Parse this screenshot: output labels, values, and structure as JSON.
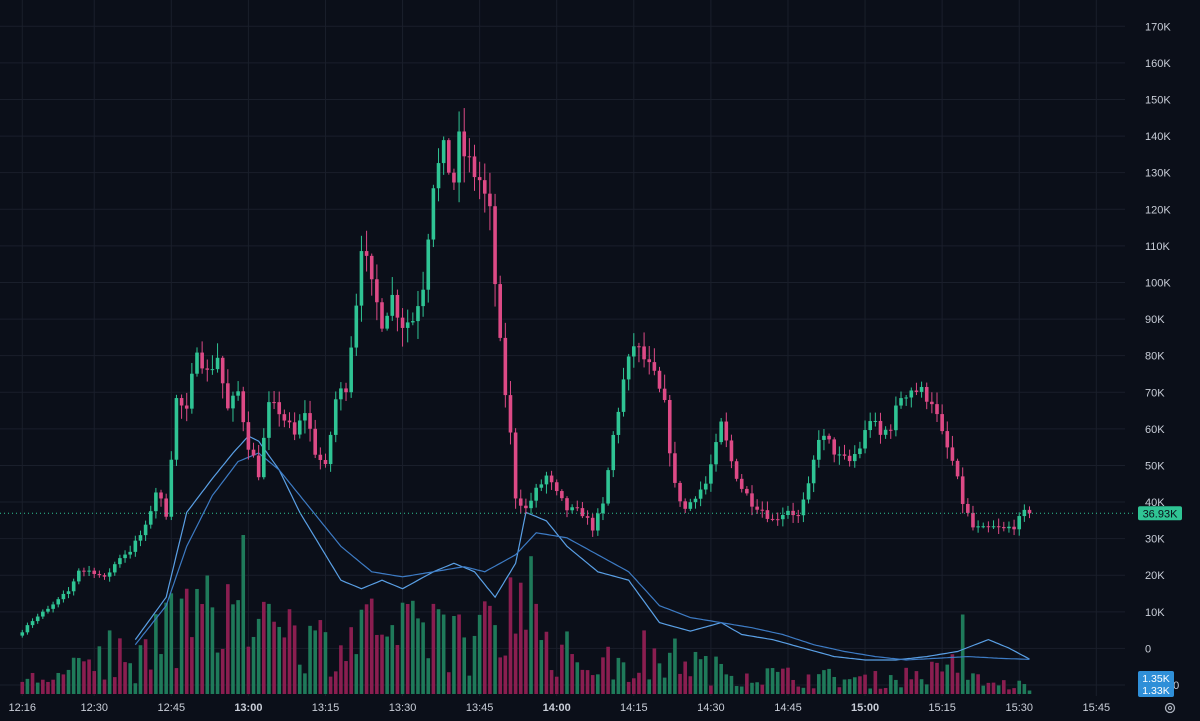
{
  "chart_data": {
    "type": "candlestick",
    "theme": {
      "background": "#0b0f19",
      "grid": "#1a1f2b",
      "text": "#c9ced8",
      "up": "#2fc494",
      "down": "#dd4a86",
      "up_volume": "#1f7a5a",
      "down_volume": "#8a1e50",
      "ma_fast": "#5aa0e6",
      "ma_slow": "#3d7bc4",
      "last_price_line": "#2fc494"
    },
    "x_axis": {
      "ticks": [
        {
          "label": "12:16",
          "t": 16,
          "bold": false
        },
        {
          "label": "12:30",
          "t": 30,
          "bold": false
        },
        {
          "label": "12:45",
          "t": 45,
          "bold": false
        },
        {
          "label": "13:00",
          "t": 60,
          "bold": true
        },
        {
          "label": "13:15",
          "t": 75,
          "bold": false
        },
        {
          "label": "13:30",
          "t": 90,
          "bold": false
        },
        {
          "label": "13:45",
          "t": 105,
          "bold": false
        },
        {
          "label": "14:00",
          "t": 120,
          "bold": true
        },
        {
          "label": "14:15",
          "t": 135,
          "bold": false
        },
        {
          "label": "14:30",
          "t": 150,
          "bold": false
        },
        {
          "label": "14:45",
          "t": 165,
          "bold": false
        },
        {
          "label": "15:00",
          "t": 180,
          "bold": true
        },
        {
          "label": "15:15",
          "t": 195,
          "bold": false
        },
        {
          "label": "15:30",
          "t": 210,
          "bold": false
        },
        {
          "label": "15:45",
          "t": 225,
          "bold": false
        }
      ],
      "range_minutes_after_12_00": [
        14,
        230
      ]
    },
    "y_axis": {
      "ticks": [
        {
          "label": "170K",
          "v": 170000
        },
        {
          "label": "160K",
          "v": 160000
        },
        {
          "label": "150K",
          "v": 150000
        },
        {
          "label": "140K",
          "v": 140000
        },
        {
          "label": "130K",
          "v": 130000
        },
        {
          "label": "120K",
          "v": 120000
        },
        {
          "label": "110K",
          "v": 110000
        },
        {
          "label": "100K",
          "v": 100000
        },
        {
          "label": "90K",
          "v": 90000
        },
        {
          "label": "80K",
          "v": 80000
        },
        {
          "label": "70K",
          "v": 70000
        },
        {
          "label": "60K",
          "v": 60000
        },
        {
          "label": "50K",
          "v": 50000
        },
        {
          "label": "40K",
          "v": 40000
        },
        {
          "label": "30K",
          "v": 30000
        },
        {
          "label": "20K",
          "v": 20000
        },
        {
          "label": "10K",
          "v": 10000
        },
        {
          "label": "0",
          "v": 0
        },
        {
          "label": "-10000",
          "v": -10000
        }
      ],
      "range": [
        -13000,
        175000
      ]
    },
    "last_price": {
      "value": 36930,
      "label": "36.93K"
    },
    "volume_labels": [
      {
        "label": "1.35K",
        "value": 1350
      },
      {
        "label": "1.33K",
        "value": 1330
      }
    ],
    "price_keypoints": [
      [
        16,
        3500
      ],
      [
        18,
        6800
      ],
      [
        22,
        10500
      ],
      [
        26,
        15500
      ],
      [
        28,
        21500
      ],
      [
        31,
        21000
      ],
      [
        33,
        19000
      ],
      [
        36,
        25000
      ],
      [
        38,
        26800
      ],
      [
        41,
        33000
      ],
      [
        43,
        43000
      ],
      [
        45,
        37000
      ],
      [
        47,
        68000
      ],
      [
        49,
        64000
      ],
      [
        51,
        83000
      ],
      [
        53,
        75000
      ],
      [
        55,
        80000
      ],
      [
        57,
        65000
      ],
      [
        59,
        70000
      ],
      [
        61,
        56000
      ],
      [
        63,
        48000
      ],
      [
        65,
        66000
      ],
      [
        67,
        65000
      ],
      [
        70,
        58000
      ],
      [
        72,
        65000
      ],
      [
        74,
        54000
      ],
      [
        76,
        49000
      ],
      [
        78,
        68000
      ],
      [
        80,
        72000
      ],
      [
        82,
        95000
      ],
      [
        83,
        111000
      ],
      [
        85,
        98000
      ],
      [
        87,
        90000
      ],
      [
        89,
        96000
      ],
      [
        91,
        89000
      ],
      [
        93,
        90000
      ],
      [
        95,
        100000
      ],
      [
        97,
        128000
      ],
      [
        99,
        135000
      ],
      [
        101,
        128000
      ],
      [
        102,
        138000
      ],
      [
        104,
        132000
      ],
      [
        106,
        128000
      ],
      [
        108,
        118000
      ],
      [
        110,
        82000
      ],
      [
        112,
        58000
      ],
      [
        113,
        42000
      ],
      [
        115,
        38000
      ],
      [
        117,
        43000
      ],
      [
        119,
        47000
      ],
      [
        121,
        42000
      ],
      [
        123,
        38000
      ],
      [
        126,
        37000
      ],
      [
        128,
        33000
      ],
      [
        130,
        39000
      ],
      [
        132,
        58000
      ],
      [
        134,
        73000
      ],
      [
        136,
        83000
      ],
      [
        138,
        79000
      ],
      [
        140,
        74000
      ],
      [
        142,
        66000
      ],
      [
        144,
        44000
      ],
      [
        146,
        38000
      ],
      [
        148,
        42000
      ],
      [
        150,
        45000
      ],
      [
        152,
        55000
      ],
      [
        153,
        61000
      ],
      [
        155,
        51000
      ],
      [
        157,
        44000
      ],
      [
        159,
        40000
      ],
      [
        161,
        38000
      ],
      [
        163,
        35000
      ],
      [
        165,
        37000
      ],
      [
        166,
        38000
      ],
      [
        168,
        36000
      ],
      [
        170,
        44000
      ],
      [
        172,
        58000
      ],
      [
        174,
        56000
      ],
      [
        176,
        52000
      ],
      [
        178,
        51000
      ],
      [
        180,
        55000
      ],
      [
        182,
        63000
      ],
      [
        184,
        58000
      ],
      [
        186,
        61000
      ],
      [
        188,
        69000
      ],
      [
        190,
        71000
      ],
      [
        192,
        70000
      ],
      [
        194,
        68000
      ],
      [
        196,
        58000
      ],
      [
        198,
        51000
      ],
      [
        200,
        40000
      ],
      [
        202,
        33000
      ],
      [
        204,
        32500
      ],
      [
        206,
        33000
      ],
      [
        208,
        32500
      ],
      [
        210,
        33500
      ],
      [
        212,
        36930
      ]
    ],
    "volume_keypoints": [
      [
        16,
        2500
      ],
      [
        24,
        3500
      ],
      [
        30,
        6000
      ],
      [
        36,
        4500
      ],
      [
        40,
        6500
      ],
      [
        44,
        12000
      ],
      [
        48,
        15000
      ],
      [
        54,
        14000
      ],
      [
        58,
        19000
      ],
      [
        62,
        18000
      ],
      [
        66,
        12000
      ],
      [
        72,
        10000
      ],
      [
        78,
        9000
      ],
      [
        82,
        12000
      ],
      [
        86,
        10000
      ],
      [
        92,
        11000
      ],
      [
        98,
        12000
      ],
      [
        104,
        9000
      ],
      [
        110,
        16000
      ],
      [
        114,
        14000
      ],
      [
        120,
        8000
      ],
      [
        126,
        6000
      ],
      [
        132,
        5500
      ],
      [
        138,
        5000
      ],
      [
        144,
        7000
      ],
      [
        150,
        4500
      ],
      [
        156,
        4000
      ],
      [
        162,
        3500
      ],
      [
        168,
        3000
      ],
      [
        174,
        3000
      ],
      [
        180,
        2500
      ],
      [
        186,
        3000
      ],
      [
        192,
        4000
      ],
      [
        198,
        3500
      ],
      [
        204,
        2000
      ],
      [
        212,
        1500
      ]
    ],
    "volume_spikes": [
      [
        31,
        9000
      ],
      [
        33,
        12000
      ],
      [
        35,
        10500
      ],
      [
        45,
        19000
      ],
      [
        47,
        18000
      ],
      [
        59,
        30000
      ],
      [
        64,
        17000
      ],
      [
        68,
        16000
      ],
      [
        84,
        18000
      ],
      [
        88,
        13000
      ],
      [
        96,
        17000
      ],
      [
        101,
        15000
      ],
      [
        108,
        13000
      ],
      [
        111,
        22000
      ],
      [
        113,
        21000
      ],
      [
        115,
        26000
      ],
      [
        137,
        12000
      ],
      [
        197,
        7500
      ],
      [
        199,
        15000
      ]
    ],
    "ma_fast_keypoints": [
      [
        38,
        2500
      ],
      [
        44,
        5000
      ],
      [
        48,
        10000
      ],
      [
        53,
        12000
      ],
      [
        57,
        13500
      ],
      [
        60,
        14500
      ],
      [
        62,
        14200
      ],
      [
        66,
        12500
      ],
      [
        70,
        10000
      ],
      [
        74,
        8000
      ],
      [
        78,
        6000
      ],
      [
        82,
        5500
      ],
      [
        86,
        6000
      ],
      [
        90,
        5500
      ],
      [
        96,
        6500
      ],
      [
        100,
        7000
      ],
      [
        104,
        6500
      ],
      [
        108,
        5000
      ],
      [
        112,
        7000
      ],
      [
        114,
        10000
      ],
      [
        118,
        9500
      ],
      [
        122,
        8000
      ],
      [
        128,
        6500
      ],
      [
        134,
        6000
      ],
      [
        140,
        3500
      ],
      [
        146,
        3000
      ],
      [
        152,
        3500
      ],
      [
        156,
        2800
      ],
      [
        162,
        2500
      ],
      [
        168,
        2000
      ],
      [
        174,
        1500
      ],
      [
        180,
        1300
      ],
      [
        186,
        1300
      ],
      [
        192,
        1500
      ],
      [
        198,
        1800
      ],
      [
        204,
        2500
      ],
      [
        208,
        2000
      ],
      [
        212,
        1350
      ]
    ],
    "ma_slow_keypoints": [
      [
        38,
        2200
      ],
      [
        44,
        4500
      ],
      [
        48,
        8000
      ],
      [
        53,
        11000
      ],
      [
        58,
        13000
      ],
      [
        62,
        13500
      ],
      [
        66,
        12500
      ],
      [
        70,
        11000
      ],
      [
        74,
        9500
      ],
      [
        78,
        8000
      ],
      [
        84,
        6500
      ],
      [
        90,
        6200
      ],
      [
        96,
        6500
      ],
      [
        102,
        6800
      ],
      [
        106,
        6500
      ],
      [
        112,
        7500
      ],
      [
        116,
        8800
      ],
      [
        122,
        8500
      ],
      [
        128,
        7500
      ],
      [
        134,
        6500
      ],
      [
        140,
        4500
      ],
      [
        146,
        3800
      ],
      [
        152,
        3500
      ],
      [
        158,
        3200
      ],
      [
        164,
        2800
      ],
      [
        170,
        2200
      ],
      [
        176,
        1800
      ],
      [
        182,
        1500
      ],
      [
        188,
        1300
      ],
      [
        194,
        1400
      ],
      [
        200,
        1500
      ],
      [
        206,
        1400
      ],
      [
        212,
        1330
      ]
    ]
  }
}
